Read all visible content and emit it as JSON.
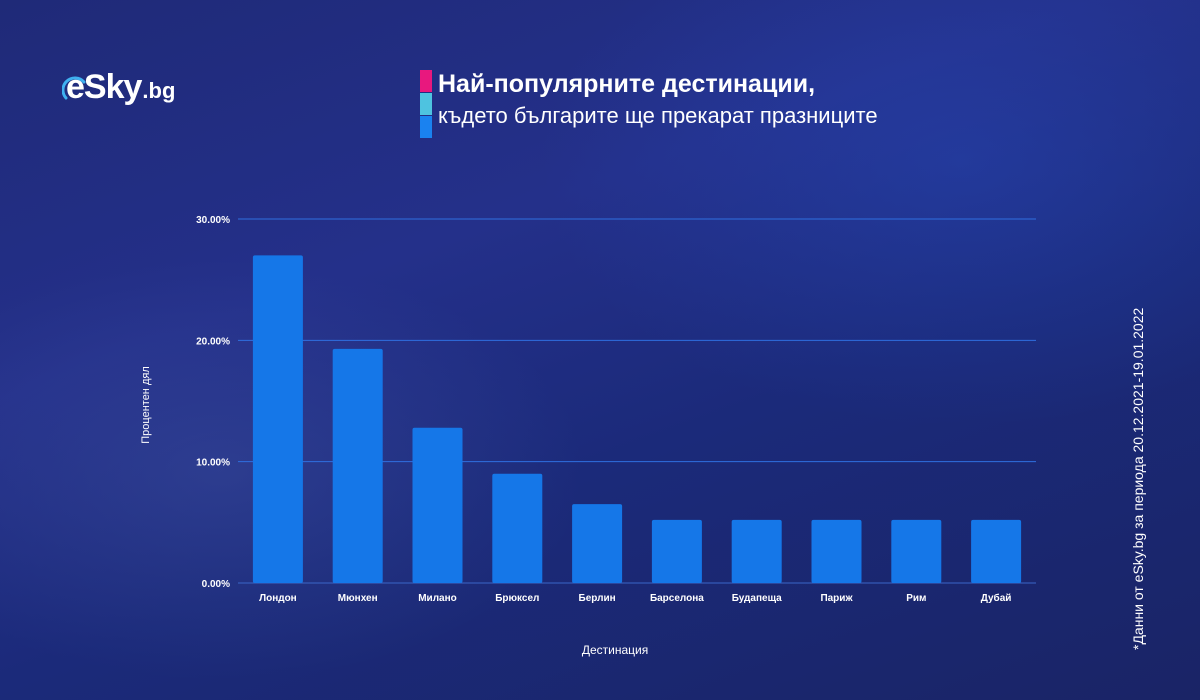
{
  "brand": {
    "logo_main": "eSky",
    "logo_suffix": ".bg"
  },
  "title": {
    "line1": "Най-популярните дестинации,",
    "line2": "където българите ще прекарат празниците",
    "bar_colors": [
      "#e8187e",
      "#4ec3e0",
      "#1a82f0"
    ]
  },
  "side_note": "*Данни от eSky.bg за периода 20.12.2021-19.01.2022",
  "colors": {
    "bar": "#1577e8",
    "grid": "#2f6fe0",
    "background": "#1f2a78"
  },
  "chart_data": {
    "type": "bar",
    "xlabel": "Дестинация",
    "ylabel": "Процентен дял",
    "ylim": [
      0,
      30
    ],
    "yticks": [
      "0.00%",
      "10.00%",
      "20.00%",
      "30.00%"
    ],
    "grid": true,
    "categories": [
      "Лондон",
      "Мюнхен",
      "Милано",
      "Брюксел",
      "Берлин",
      "Барселона",
      "Будапеща",
      "Париж",
      "Рим",
      "Дубай"
    ],
    "values": [
      27.0,
      19.3,
      12.8,
      9.0,
      6.5,
      5.2,
      5.2,
      5.2,
      5.2,
      5.2
    ]
  }
}
